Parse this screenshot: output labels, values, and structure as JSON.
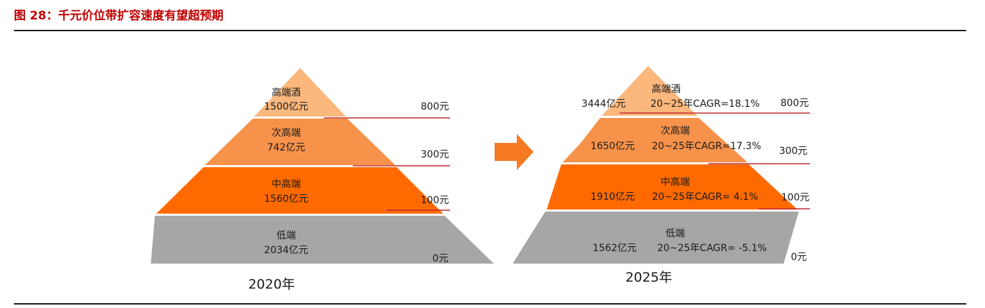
{
  "figure_title": "图 28：千元价位带扩容速度有望超预期",
  "colors": {
    "premium": "#fbb77c",
    "sub_premium": "#f7924a",
    "mid_premium": "#ff6a00",
    "low": "#a6a6a6",
    "price_line": "#c0282d",
    "arrow": "#f57a22",
    "title": "#c00000"
  },
  "arrow_icon": "right-arrow-icon",
  "pyramid_2020": {
    "year_label": "2020年",
    "tiers": [
      {
        "name": "高端酒",
        "value": "1500亿元"
      },
      {
        "name": "次高端",
        "value": "742亿元"
      },
      {
        "name": "中高端",
        "value": "1560亿元"
      },
      {
        "name": "低端",
        "value": "2034亿元"
      }
    ],
    "price_labels": [
      "800元",
      "300元",
      "100元",
      "0元"
    ]
  },
  "pyramid_2025": {
    "year_label": "2025年",
    "tiers": [
      {
        "name": "高端酒",
        "value": "3444亿元",
        "cagr": "20~25年CAGR=18.1%"
      },
      {
        "name": "次高端",
        "value": "1650亿元",
        "cagr": "20~25年CAGR=17.3%"
      },
      {
        "name": "中高端",
        "value": "1910亿元",
        "cagr": "20~25年CAGR= 4.1%"
      },
      {
        "name": "低端",
        "value": "1562亿元",
        "cagr": "20~25年CAGR= -5.1%"
      }
    ],
    "price_labels": [
      "800元",
      "300元",
      "100元",
      "0元"
    ]
  }
}
